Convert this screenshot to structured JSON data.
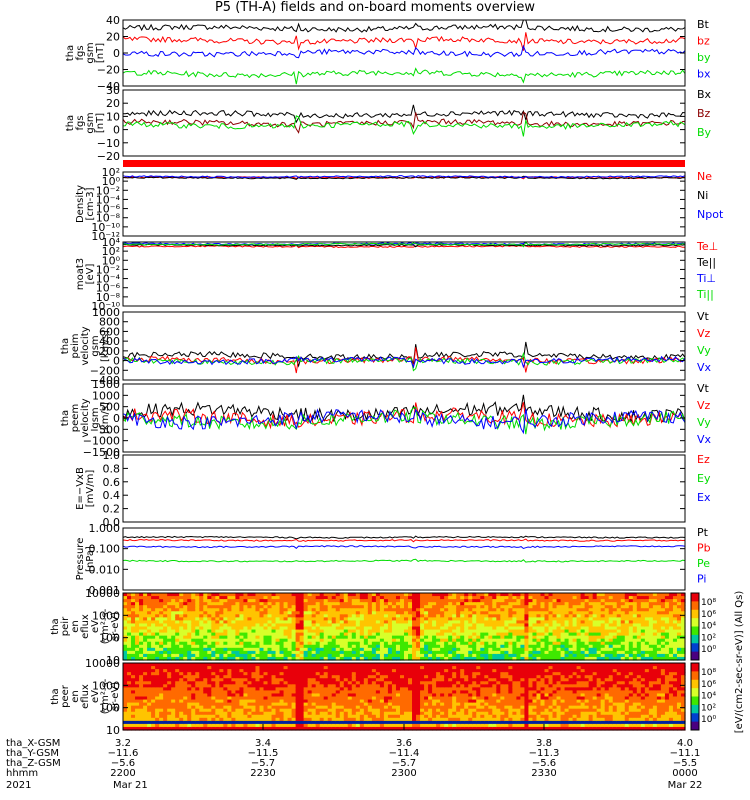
{
  "title": "P5 (TH-A) fields and on-board moments overview",
  "colors": {
    "black": "#000000",
    "red": "#ff0000",
    "blue": "#0000ff",
    "green": "#00dd00",
    "brown": "#8b0000"
  },
  "chart_data": [
    {
      "type": "line",
      "ylabel": [
        "tha",
        "fgs",
        "gsm",
        "[nT]"
      ],
      "ylim": [
        -40,
        40
      ],
      "ticks": [
        "40",
        "20",
        "0",
        "−20",
        "−40"
      ],
      "series": [
        {
          "name": "Bt",
          "color": "#000000",
          "level": 30
        },
        {
          "name": "bz",
          "color": "#ff0000",
          "level": 15
        },
        {
          "name": "by",
          "color": "#00dd00",
          "level": -25
        },
        {
          "name": "bx",
          "color": "#0000ff",
          "level": 0
        }
      ]
    },
    {
      "type": "line",
      "ylabel": [
        "tha",
        "fgs",
        "gsm",
        "[nT]"
      ],
      "ylim": [
        -30,
        30
      ],
      "ticks": [
        "30",
        "20",
        "10",
        "0",
        "−10",
        "−20"
      ],
      "series": [
        {
          "name": "Bx",
          "color": "#000000",
          "level": 8
        },
        {
          "name": "Bz",
          "color": "#8b0000",
          "level": 0
        },
        {
          "name": "By",
          "color": "#00dd00",
          "level": -2
        }
      ]
    },
    {
      "type": "line",
      "ylabel": [
        "Density",
        "[cm-3]"
      ],
      "ylim": [
        -12,
        2
      ],
      "log": true,
      "ticks": [
        "10²",
        "10⁰",
        "10⁻²",
        "10⁻⁴",
        "10⁻⁶",
        "10⁻⁸",
        "10⁻¹⁰",
        "10⁻¹²"
      ],
      "series": [
        {
          "name": "Ne",
          "color": "#ff0000",
          "level": 0.8
        },
        {
          "name": "Ni",
          "color": "#000000",
          "level": 0.7
        },
        {
          "name": "Npot",
          "color": "#0000ff",
          "level": 1.0
        }
      ]
    },
    {
      "type": "line",
      "ylabel": [
        "moat3",
        "[eV]"
      ],
      "ylim": [
        -10,
        4
      ],
      "log": true,
      "ticks": [
        "10⁴",
        "10²",
        "10⁰",
        "10⁻²",
        "10⁻⁴",
        "10⁻⁶",
        "10⁻⁸",
        "10⁻¹⁰"
      ],
      "series": [
        {
          "name": "Te⊥",
          "color": "#ff0000",
          "level": 3.0
        },
        {
          "name": "Te||",
          "color": "#000000",
          "level": 3.3
        },
        {
          "name": "Ti⊥",
          "color": "#0000ff",
          "level": 3.6
        },
        {
          "name": "Ti||",
          "color": "#00dd00",
          "level": 3.5
        }
      ]
    },
    {
      "type": "line",
      "ylabel": [
        "tha",
        "peim",
        "velocity",
        "gsm",
        "[km/s]"
      ],
      "ylim": [
        -400,
        1000
      ],
      "ticks": [
        "1000",
        "800",
        "600",
        "400",
        "200",
        "0",
        "−200",
        "−400"
      ],
      "series": [
        {
          "name": "Vt",
          "color": "#000000",
          "level": 100
        },
        {
          "name": "Vz",
          "color": "#ff0000",
          "level": 10
        },
        {
          "name": "Vy",
          "color": "#00dd00",
          "level": -10
        },
        {
          "name": "Vx",
          "color": "#0000ff",
          "level": 0
        }
      ]
    },
    {
      "type": "line",
      "ylabel": [
        "tha",
        "peem",
        "velocity",
        "gsm",
        "[km/s]"
      ],
      "ylim": [
        -1500,
        1500
      ],
      "ticks": [
        "1500",
        "1000",
        "500",
        "0",
        "−500",
        "−1000",
        "−1500"
      ],
      "series": [
        {
          "name": "Vt",
          "color": "#000000",
          "level": 250
        },
        {
          "name": "Vz",
          "color": "#ff0000",
          "level": 0
        },
        {
          "name": "Vy",
          "color": "#00dd00",
          "level": -100
        },
        {
          "name": "Vx",
          "color": "#0000ff",
          "level": -50
        }
      ]
    },
    {
      "type": "line",
      "ylabel": [
        "E=−VxB",
        "[mV/m]"
      ],
      "ylim": [
        0,
        1
      ],
      "ticks": [
        "1.0",
        "0.8",
        "0.6",
        "0.4",
        "0.2",
        "0.0"
      ],
      "series": [
        {
          "name": "Ez",
          "color": "#ff0000"
        },
        {
          "name": "Ey",
          "color": "#00dd00"
        },
        {
          "name": "Ex",
          "color": "#0000ff"
        }
      ]
    },
    {
      "type": "line",
      "ylabel": [
        "Pressure",
        "[nPa]"
      ],
      "ylim": [
        -3,
        0
      ],
      "log": true,
      "ticks": [
        "1.000",
        "0.100",
        "0.010",
        "0.001"
      ],
      "series": [
        {
          "name": "Pt",
          "color": "#000000",
          "level": -0.45
        },
        {
          "name": "Pb",
          "color": "#ff0000",
          "level": -0.6
        },
        {
          "name": "Pe",
          "color": "#00dd00",
          "level": -1.6
        },
        {
          "name": "Pi",
          "color": "#0000ff",
          "level": -0.9
        }
      ]
    },
    {
      "type": "heatmap",
      "ylabel": [
        "tha",
        "peir",
        "en",
        "eflux",
        "eV",
        "(cm²-s-",
        "sr-eV)"
      ],
      "ticks": [
        "10000",
        "1000",
        "100",
        "10"
      ]
    },
    {
      "type": "heatmap",
      "ylabel": [
        "tha",
        "peer",
        "en",
        "eflux",
        "eV",
        "(cm²-s-",
        "sr-eV)"
      ],
      "ticks": [
        "10000",
        "1000",
        "100",
        "10"
      ]
    }
  ],
  "colorbar": {
    "label": "[eV/(cm2-sec-sr-eV)] (All Qs)",
    "label2": "[eV/(cm2-sec-sr-eV)]",
    "ticks_top": [
      "10⁸",
      "10⁶",
      "10⁴",
      "10²",
      "10⁰"
    ],
    "ticks_bottom": [
      "10⁸",
      "10⁶",
      "10⁴",
      "10²",
      "10⁰"
    ]
  },
  "xaxis": {
    "rows": [
      {
        "label": "tha_X-GSM",
        "values": [
          "3.2",
          "3.4",
          "3.6",
          "3.8",
          "4.0"
        ]
      },
      {
        "label": "tha_Y-GSM",
        "values": [
          "−11.6",
          "−11.5",
          "−11.4",
          "−11.3",
          "−11.1"
        ]
      },
      {
        "label": "tha_Z-GSM",
        "values": [
          "−5.6",
          "−5.7",
          "−5.7",
          "−5.6",
          "−5.5"
        ]
      },
      {
        "label": "hhmm",
        "values": [
          "2200",
          "2230",
          "2300",
          "2330",
          "0000"
        ]
      }
    ],
    "year": "2021",
    "date_start": "Mar 21",
    "date_end": "Mar 22",
    "events_frac": [
      0.31,
      0.52,
      0.715
    ]
  }
}
